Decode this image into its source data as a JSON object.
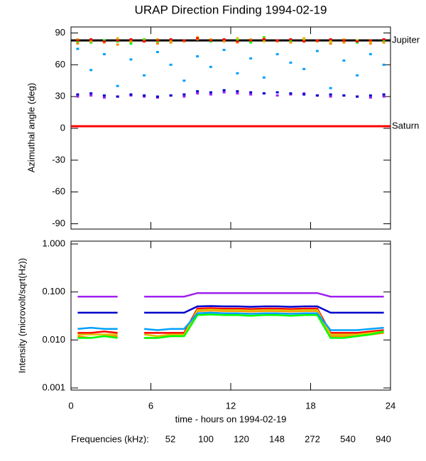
{
  "chart_data": [
    {
      "type": "scatter",
      "title": "URAP Direction Finding  1994-02-19",
      "ylabel": "Azimuthal angle (deg)",
      "xlim": [
        0,
        24
      ],
      "xticks": [
        0,
        6,
        12,
        18,
        24
      ],
      "ylim": [
        -93,
        93
      ],
      "yticks": [
        -90,
        -60,
        -30,
        0,
        30,
        60,
        90
      ],
      "reference_lines": [
        {
          "label": "Jupiter",
          "value": 83,
          "color": "#000000"
        },
        {
          "label": "Saturn",
          "value": 2,
          "color": "#ff0000"
        }
      ],
      "x": [
        0.5,
        1.5,
        2.5,
        3.5,
        4.5,
        5.5,
        6.5,
        7.5,
        8.5,
        9.5,
        10.5,
        11.5,
        12.5,
        13.5,
        14.5,
        15.5,
        16.5,
        17.5,
        18.5,
        19.5,
        20.5,
        21.5,
        22.5,
        23.5
      ],
      "series": [
        {
          "color": "#a020f0",
          "values": [
            30,
            31,
            29,
            30,
            31,
            30,
            29,
            31,
            30,
            33,
            32,
            34,
            33,
            32,
            33,
            31,
            32,
            33,
            31,
            30,
            31,
            30,
            29,
            30
          ]
        },
        {
          "color": "#0000cd",
          "values": [
            32,
            33,
            31,
            30,
            32,
            31,
            30,
            31,
            32,
            35,
            34,
            36,
            35,
            34,
            33,
            34,
            33,
            32,
            31,
            32,
            31,
            30,
            31,
            32
          ]
        },
        {
          "color": "#00a0ff",
          "values": [
            75,
            55,
            70,
            40,
            65,
            50,
            72,
            60,
            45,
            68,
            58,
            74,
            52,
            66,
            48,
            70,
            62,
            56,
            73,
            38,
            64,
            50,
            70,
            60
          ]
        },
        {
          "color": "#00ff00",
          "values": [
            82,
            81,
            83,
            82,
            80,
            84,
            82,
            81,
            83,
            85,
            82,
            84,
            83,
            81,
            86,
            82,
            83,
            84,
            82,
            80,
            82,
            81,
            83,
            82
          ]
        },
        {
          "color": "#e0c000",
          "values": [
            84,
            83,
            82,
            85,
            83,
            82,
            84,
            83,
            82,
            86,
            84,
            83,
            85,
            84,
            82,
            83,
            84,
            85,
            83,
            82,
            84,
            83,
            82,
            84
          ]
        },
        {
          "color": "#ff8c00",
          "values": [
            80,
            82,
            81,
            79,
            82,
            83,
            80,
            81,
            82,
            84,
            83,
            82,
            81,
            83,
            85,
            82,
            81,
            83,
            82,
            80,
            81,
            82,
            80,
            81
          ]
        },
        {
          "color": "#ff0000",
          "values": [
            83,
            84,
            82,
            83,
            84,
            82,
            83,
            84,
            83,
            85,
            83,
            84,
            82,
            83,
            84,
            83,
            84,
            82,
            83,
            84,
            83,
            82,
            83,
            84
          ]
        }
      ]
    },
    {
      "type": "line",
      "ylabel": "Intensity (microvolt/sqrt(Hz))",
      "xlabel": "time - hours on 1994-02-19",
      "log_y": true,
      "xlim": [
        0,
        24
      ],
      "xticks": [
        0,
        6,
        12,
        18,
        24
      ],
      "ylim": [
        0.001,
        1.0
      ],
      "yticks": [
        0.001,
        {
          "value": 0.01,
          "label": "0.010"
        },
        {
          "value": 0.1,
          "label": "0.100"
        },
        {
          "value": 1.0,
          "label": "1.000"
        }
      ],
      "legend_title": "Frequencies (kHz):",
      "x": [
        0.5,
        1.5,
        2.5,
        3.5,
        4.5,
        5.5,
        6.5,
        7.5,
        8.5,
        9.5,
        10.5,
        11.5,
        12.5,
        13.5,
        14.5,
        15.5,
        16.5,
        17.5,
        18.5,
        19.5,
        20.5,
        21.5,
        22.5,
        23.5
      ],
      "series": [
        {
          "name": "52",
          "color": "#ff0000",
          "values": [
            0.014,
            0.014,
            0.015,
            0.014,
            null,
            0.014,
            0.014,
            0.014,
            0.014,
            0.045,
            0.046,
            0.045,
            0.045,
            0.044,
            0.045,
            0.045,
            0.044,
            0.045,
            0.045,
            0.014,
            0.014,
            0.014,
            0.015,
            0.016
          ]
        },
        {
          "name": "100",
          "color": "#ff8c00",
          "values": [
            0.012,
            0.011,
            0.012,
            0.012,
            null,
            0.011,
            0.011,
            0.012,
            0.012,
            0.04,
            0.041,
            0.04,
            0.04,
            0.039,
            0.04,
            0.04,
            0.039,
            0.04,
            0.04,
            0.012,
            0.012,
            0.012,
            0.013,
            0.014
          ]
        },
        {
          "name": "120",
          "color": "#e0c000",
          "values": [
            0.013,
            0.013,
            0.013,
            0.013,
            null,
            0.013,
            0.012,
            0.013,
            0.013,
            0.042,
            0.043,
            0.042,
            0.042,
            0.041,
            0.042,
            0.042,
            0.041,
            0.042,
            0.042,
            0.013,
            0.013,
            0.013,
            0.014,
            0.015
          ]
        },
        {
          "name": "148",
          "color": "#00ff00",
          "values": [
            0.011,
            0.011,
            0.012,
            0.011,
            null,
            0.011,
            0.011,
            0.012,
            0.012,
            0.033,
            0.034,
            0.033,
            0.033,
            0.032,
            0.033,
            0.033,
            0.032,
            0.033,
            0.033,
            0.011,
            0.011,
            0.012,
            0.013,
            0.015
          ]
        },
        {
          "name": "272",
          "color": "#00a0ff",
          "values": [
            0.017,
            0.018,
            0.017,
            0.017,
            null,
            0.017,
            0.016,
            0.017,
            0.017,
            0.036,
            0.037,
            0.036,
            0.036,
            0.035,
            0.036,
            0.036,
            0.035,
            0.036,
            0.036,
            0.016,
            0.016,
            0.016,
            0.017,
            0.018
          ]
        },
        {
          "name": "540",
          "color": "#0000cd",
          "values": [
            0.037,
            0.037,
            0.037,
            0.037,
            null,
            0.037,
            0.037,
            0.037,
            0.037,
            0.05,
            0.051,
            0.05,
            0.05,
            0.049,
            0.05,
            0.05,
            0.049,
            0.05,
            0.05,
            0.037,
            0.037,
            0.037,
            0.037,
            0.037
          ]
        },
        {
          "name": "940",
          "color": "#a020f0",
          "values": [
            0.08,
            0.08,
            0.08,
            0.08,
            null,
            0.08,
            0.08,
            0.08,
            0.08,
            0.095,
            0.095,
            0.095,
            0.095,
            0.095,
            0.095,
            0.095,
            0.095,
            0.095,
            0.095,
            0.08,
            0.08,
            0.08,
            0.08,
            0.08
          ]
        }
      ]
    }
  ]
}
